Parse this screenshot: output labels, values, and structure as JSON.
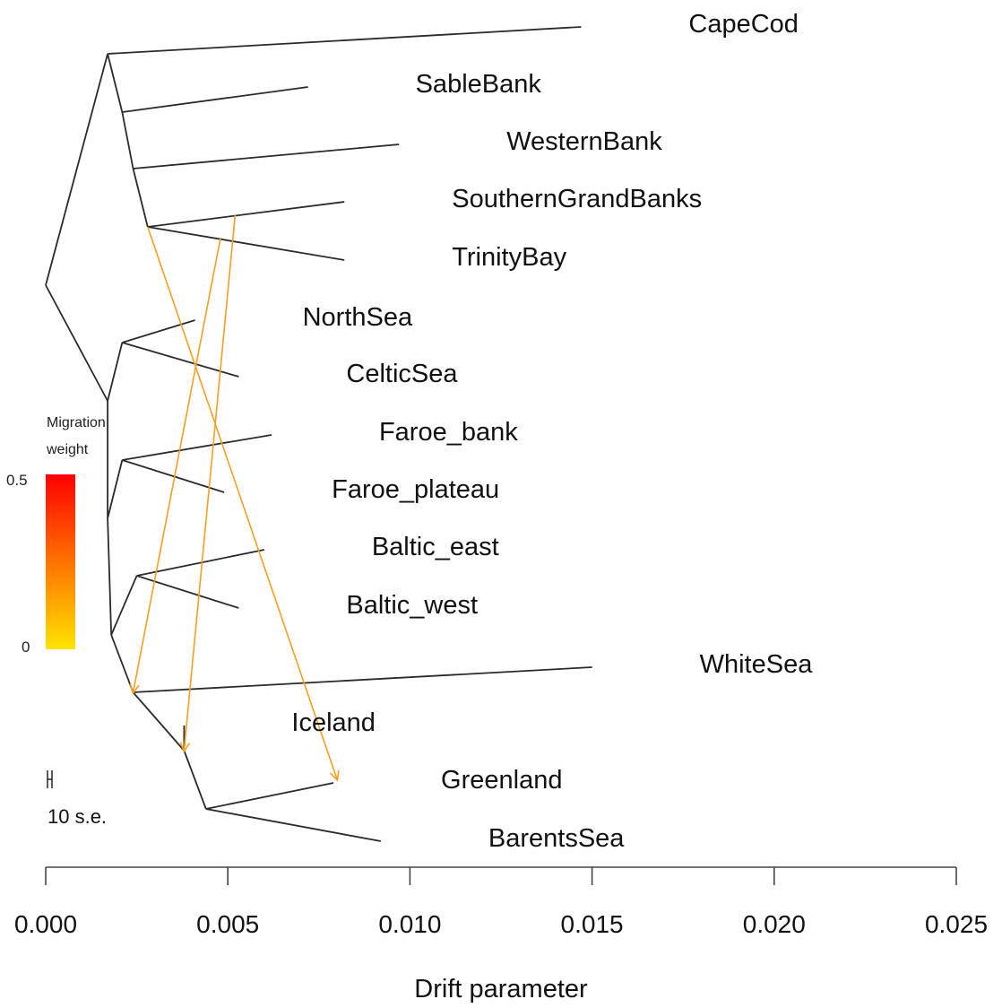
{
  "chart_data": {
    "type": "tree",
    "xlabel": "Drift parameter",
    "xlim": [
      0,
      0.025
    ],
    "xticks": [
      "0.000",
      "0.005",
      "0.010",
      "0.015",
      "0.020",
      "0.025"
    ],
    "leaves": [
      {
        "name": "CapeCod",
        "drift": 0.0147
      },
      {
        "name": "SableBank",
        "drift": 0.0072
      },
      {
        "name": "WesternBank",
        "drift": 0.0097
      },
      {
        "name": "SouthernGrandBanks",
        "drift": 0.0082
      },
      {
        "name": "TrinityBay",
        "drift": 0.0082
      },
      {
        "name": "NorthSea",
        "drift": 0.0041
      },
      {
        "name": "CelticSea",
        "drift": 0.0053
      },
      {
        "name": "Faroe_bank",
        "drift": 0.0062
      },
      {
        "name": "Faroe_plateau",
        "drift": 0.0049
      },
      {
        "name": "Baltic_east",
        "drift": 0.006
      },
      {
        "name": "Baltic_west",
        "drift": 0.0053
      },
      {
        "name": "WhiteSea",
        "drift": 0.015
      },
      {
        "name": "Iceland",
        "drift": 0.0038
      },
      {
        "name": "Greenland",
        "drift": 0.0079
      },
      {
        "name": "BarentsSea",
        "drift": 0.0092
      }
    ],
    "migration_edges": [
      {
        "from": "SouthernGrandBanks / TrinityBay ancestor",
        "to": "Greenland",
        "weight": 0.05
      },
      {
        "from": "SouthernGrandBanks / TrinityBay branch",
        "to": "WhiteSea / Iceland ancestor",
        "weight": 0.07
      },
      {
        "from": "SouthernGrandBanks branch",
        "to": "Iceland / Greenland ancestor",
        "weight": 0.06
      }
    ],
    "legend": {
      "title_line1": "Migration",
      "title_line2": "weight",
      "max_label": "0.5",
      "min_label": "0",
      "colors": [
        "#ffe400",
        "#ff0000"
      ]
    },
    "scale_bar_label": "10 s.e."
  }
}
